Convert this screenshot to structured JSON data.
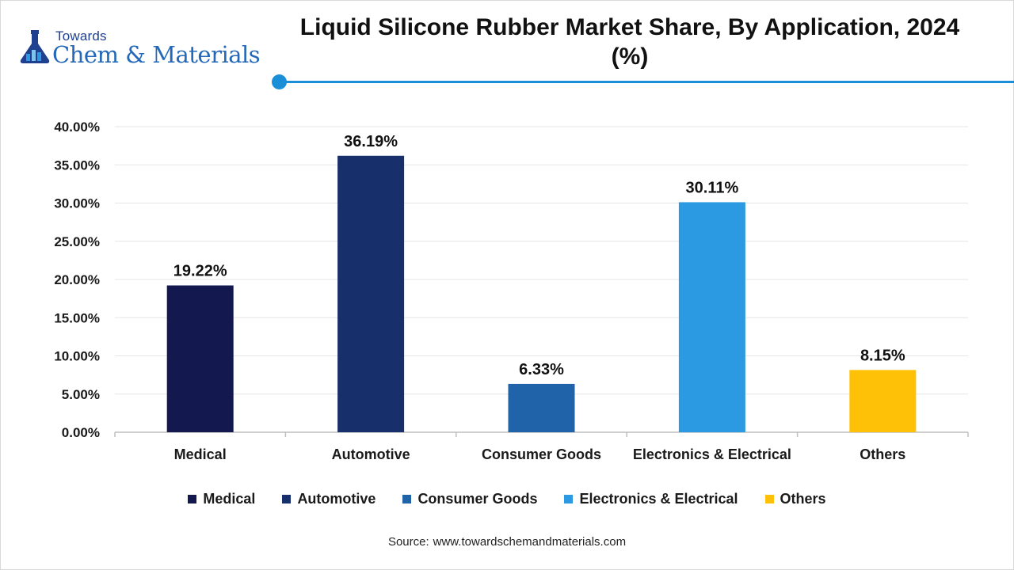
{
  "branding": {
    "logo_top": "Towards",
    "logo_main": "Chem & Materials",
    "accent_color": "#1a8fd8",
    "logo_color": "#2468b8"
  },
  "source": {
    "label": "Source:",
    "url": "www.towardschemandmaterials.com"
  },
  "chart_data": {
    "type": "bar",
    "title": "Liquid Silicone Rubber Market Share, By Application, 2024 (%)",
    "categories": [
      "Medical",
      "Automotive",
      "Consumer Goods",
      "Electronics & Electrical",
      "Others"
    ],
    "values": [
      19.22,
      36.19,
      6.33,
      30.11,
      8.15
    ],
    "data_labels": [
      "19.22%",
      "36.19%",
      "6.33%",
      "30.11%",
      "8.15%"
    ],
    "colors": [
      "#13194f",
      "#17306b",
      "#2163a8",
      "#2b9ae3",
      "#ffc107"
    ],
    "ylim": [
      0,
      40
    ],
    "yticks": [
      0,
      5,
      10,
      15,
      20,
      25,
      30,
      35,
      40
    ],
    "ytick_labels": [
      "0.00%",
      "5.00%",
      "10.00%",
      "15.00%",
      "20.00%",
      "25.00%",
      "30.00%",
      "35.00%",
      "40.00%"
    ],
    "xlabel": "",
    "ylabel": "",
    "grid": true,
    "legend_position": "bottom"
  }
}
